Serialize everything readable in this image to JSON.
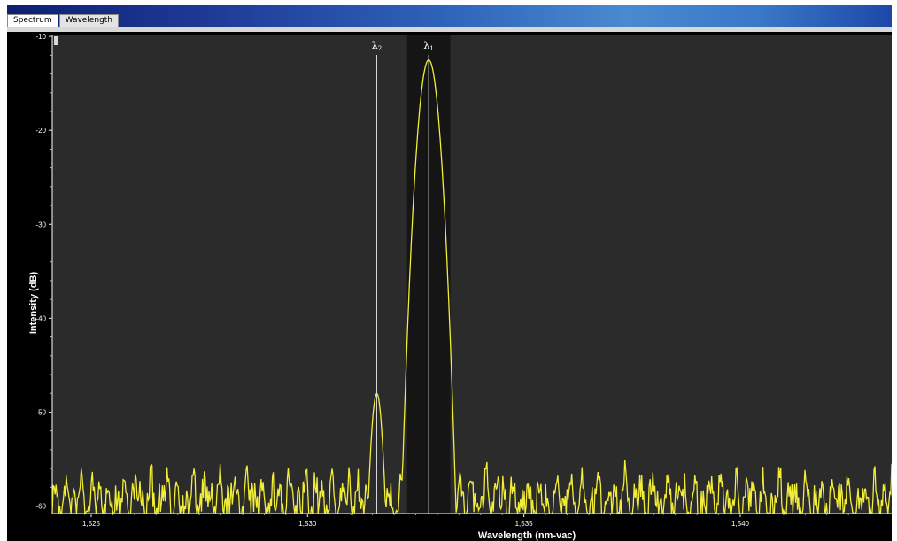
{
  "tabs": [
    {
      "label": "Spectrum",
      "active": true
    },
    {
      "label": "Wavelength",
      "active": false
    }
  ],
  "chart_data": {
    "type": "line",
    "xlabel": "Wavelength (nm-vac)",
    "ylabel": "Intensity (dB)",
    "xlim": [
      1524.1,
      1543.5
    ],
    "ylim": [
      -60.8,
      -9.8
    ],
    "xticks": [
      1525,
      1530,
      1535,
      1540
    ],
    "xtick_labels": [
      "1,525",
      "1,530",
      "1,535",
      "1,540"
    ],
    "yticks": [
      -10,
      -20,
      -30,
      -40,
      -50,
      -60
    ],
    "ytick_labels": [
      "-10",
      "-20",
      "-30",
      "-40",
      "-50",
      "-60"
    ],
    "grid": false,
    "series_color": "#f2ee38",
    "markers": [
      {
        "label": "λ2",
        "x": 1531.6,
        "peak": -48.0
      },
      {
        "label": "λ1",
        "x": 1532.8,
        "peak": -12.5
      }
    ],
    "highlight_band": [
      1532.3,
      1533.3
    ],
    "noise_floor": -56.0
  },
  "colors": {
    "plot_bg": "#2b2b2b",
    "frame": "#000000",
    "trace": "#f2ee38",
    "marker_line": "#d8d8d8",
    "text": "#ffffff"
  }
}
